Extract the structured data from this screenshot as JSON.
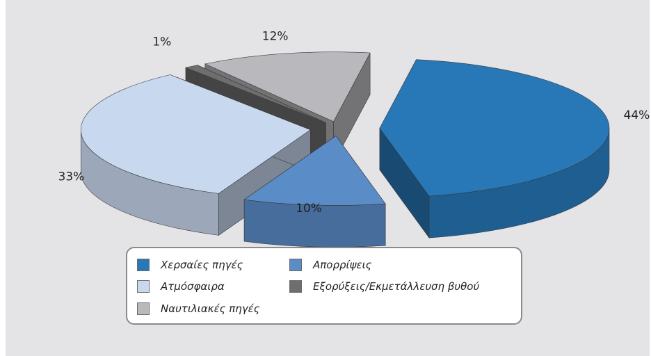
{
  "chart_data": {
    "type": "pie",
    "style": "3d-exploded",
    "slices": [
      {
        "label": "Χερσαίες πηγές",
        "value": 44,
        "display": "44%",
        "color": "#2878b8"
      },
      {
        "label": "Απορρίψεις",
        "value": 10,
        "display": "10%",
        "color": "#5a8cc8"
      },
      {
        "label": "Ατμόσφαιρα",
        "value": 33,
        "display": "33%",
        "color": "#c8d8ee"
      },
      {
        "label": "Εξορύξεις/Εκμετάλλευση βυθού",
        "value": 1,
        "display": "1%",
        "color": "#6e6e6e"
      },
      {
        "label": "Ναυτιλιακές πηγές",
        "value": 12,
        "display": "12%",
        "color": "#b9b9bd"
      }
    ],
    "legend_position": "bottom"
  },
  "legend": {
    "items": [
      {
        "label": "Χερσαίες πηγές",
        "color": "#2878b8"
      },
      {
        "label": "Απορρίψεις",
        "color": "#5a8cc8"
      },
      {
        "label": "Ατμόσφαιρα",
        "color": "#c8d8ee"
      },
      {
        "label": "Εξορύξεις/Εκμετάλλευση βυθού",
        "color": "#6e6e6e"
      },
      {
        "label": "Ναυτιλιακές πηγές",
        "color": "#b9b9bd"
      }
    ]
  }
}
